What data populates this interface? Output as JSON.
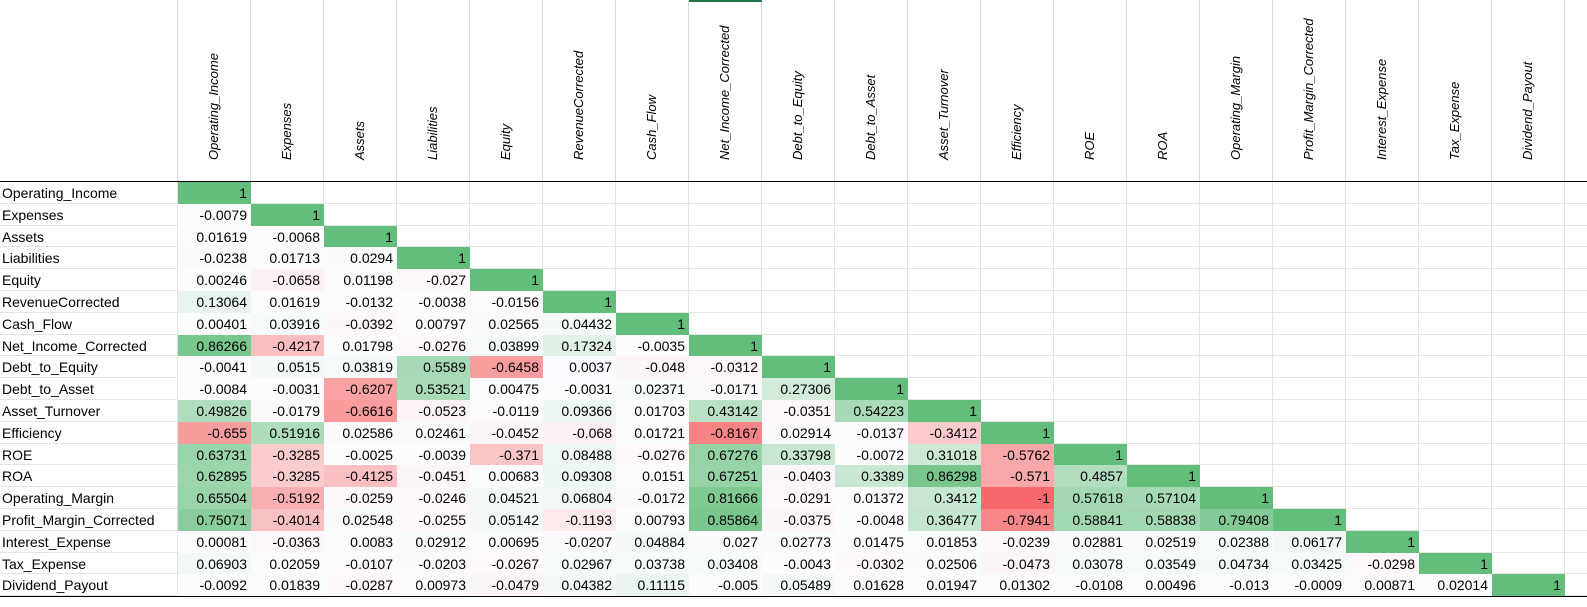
{
  "sheet": {
    "columns": [
      "Operating_Income",
      "Expenses",
      "Assets",
      "Liabilities",
      "Equity",
      "RevenueCorrected",
      "Cash_Flow",
      "Net_Income_Corrected",
      "Debt_to_Equity",
      "Debt_to_Asset",
      "Asset_Turnover",
      "Efficiency",
      "ROE",
      "ROA",
      "Operating_Margin",
      "Profit_Margin_Corrected",
      "Interest_Expense",
      "Tax_Expense",
      "Dividend_Payout"
    ],
    "rows": [
      {
        "label": "Operating_Income",
        "cells": [
          "1"
        ]
      },
      {
        "label": "Expenses",
        "cells": [
          "-0.0079",
          "1"
        ]
      },
      {
        "label": "Assets",
        "cells": [
          "0.01619",
          "-0.0068",
          "1"
        ]
      },
      {
        "label": "Liabilities",
        "cells": [
          "-0.0238",
          "0.01713",
          "0.0294",
          "1"
        ]
      },
      {
        "label": "Equity",
        "cells": [
          "0.00246",
          "-0.0658",
          "0.01198",
          "-0.027",
          "1"
        ]
      },
      {
        "label": "RevenueCorrected",
        "cells": [
          "0.13064",
          "0.01619",
          "-0.0132",
          "-0.0038",
          "-0.0156",
          "1"
        ]
      },
      {
        "label": "Cash_Flow",
        "cells": [
          "0.00401",
          "0.03916",
          "-0.0392",
          "0.00797",
          "0.02565",
          "0.04432",
          "1"
        ]
      },
      {
        "label": "Net_Income_Corrected",
        "cells": [
          "0.86266",
          "-0.4217",
          "0.01798",
          "-0.0276",
          "0.03899",
          "0.17324",
          "-0.0035",
          "1"
        ]
      },
      {
        "label": "Debt_to_Equity",
        "cells": [
          "-0.0041",
          "0.0515",
          "0.03819",
          "0.5589",
          "-0.6458",
          "0.0037",
          "-0.048",
          "-0.0312",
          "1"
        ]
      },
      {
        "label": "Debt_to_Asset",
        "cells": [
          "-0.0084",
          "-0.0031",
          "-0.6207",
          "0.53521",
          "0.00475",
          "-0.0031",
          "0.02371",
          "-0.0171",
          "0.27306",
          "1"
        ]
      },
      {
        "label": "Asset_Turnover",
        "cells": [
          "0.49826",
          "-0.0179",
          "-0.6616",
          "-0.0523",
          "-0.0119",
          "0.09366",
          "0.01703",
          "0.43142",
          "-0.0351",
          "0.54223",
          "1"
        ]
      },
      {
        "label": "Efficiency",
        "cells": [
          "-0.655",
          "0.51916",
          "0.02586",
          "0.02461",
          "-0.0452",
          "-0.068",
          "0.01721",
          "-0.8167",
          "0.02914",
          "-0.0137",
          "-0.3412",
          "1"
        ]
      },
      {
        "label": "ROE",
        "cells": [
          "0.63731",
          "-0.3285",
          "-0.0025",
          "-0.0039",
          "-0.371",
          "0.08488",
          "-0.0276",
          "0.67276",
          "0.33798",
          "-0.0072",
          "0.31018",
          "-0.5762",
          "1"
        ]
      },
      {
        "label": "ROA",
        "cells": [
          "0.62895",
          "-0.3285",
          "-0.4125",
          "-0.0451",
          "0.00683",
          "0.09308",
          "0.0151",
          "0.67251",
          "-0.0403",
          "0.3389",
          "0.86298",
          "-0.571",
          "0.4857",
          "1"
        ]
      },
      {
        "label": "Operating_Margin",
        "cells": [
          "0.65504",
          "-0.5192",
          "-0.0259",
          "-0.0246",
          "0.04521",
          "0.06804",
          "-0.0172",
          "0.81666",
          "-0.0291",
          "0.01372",
          "0.3412",
          "-1",
          "0.57618",
          "0.57104",
          "1"
        ]
      },
      {
        "label": "Profit_Margin_Corrected",
        "cells": [
          "0.75071",
          "-0.4014",
          "0.02548",
          "-0.0255",
          "0.05142",
          "-0.1193",
          "0.00793",
          "0.85864",
          "-0.0375",
          "-0.0048",
          "0.36477",
          "-0.7941",
          "0.58841",
          "0.58838",
          "0.79408",
          "1"
        ]
      },
      {
        "label": "Interest_Expense",
        "cells": [
          "0.00081",
          "-0.0363",
          "0.0083",
          "0.02912",
          "0.00695",
          "-0.0207",
          "0.04884",
          "0.027",
          "0.02773",
          "0.01475",
          "0.01853",
          "-0.0239",
          "0.02881",
          "0.02519",
          "0.02388",
          "0.06177",
          "1"
        ]
      },
      {
        "label": "Tax_Expense",
        "cells": [
          "0.06903",
          "0.02059",
          "-0.0107",
          "-0.0203",
          "-0.0267",
          "0.02967",
          "0.03738",
          "0.03408",
          "-0.0043",
          "-0.0302",
          "0.02506",
          "-0.0473",
          "0.03078",
          "0.03549",
          "0.04734",
          "0.03425",
          "-0.0298",
          "1"
        ]
      },
      {
        "label": "Dividend_Payout",
        "cells": [
          "-0.0092",
          "0.01839",
          "-0.0287",
          "0.00973",
          "-0.0479",
          "0.04382",
          "0.11115",
          "-0.005",
          "0.05489",
          "0.01628",
          "0.01947",
          "0.01302",
          "-0.0108",
          "0.00496",
          "-0.013",
          "-0.0009",
          "0.00871",
          "0.02014",
          "1"
        ]
      }
    ]
  },
  "colors": {
    "positive": "#63be7b",
    "negative": "#f8696b",
    "neutral": "#fcfcff",
    "selection": "#217346"
  }
}
